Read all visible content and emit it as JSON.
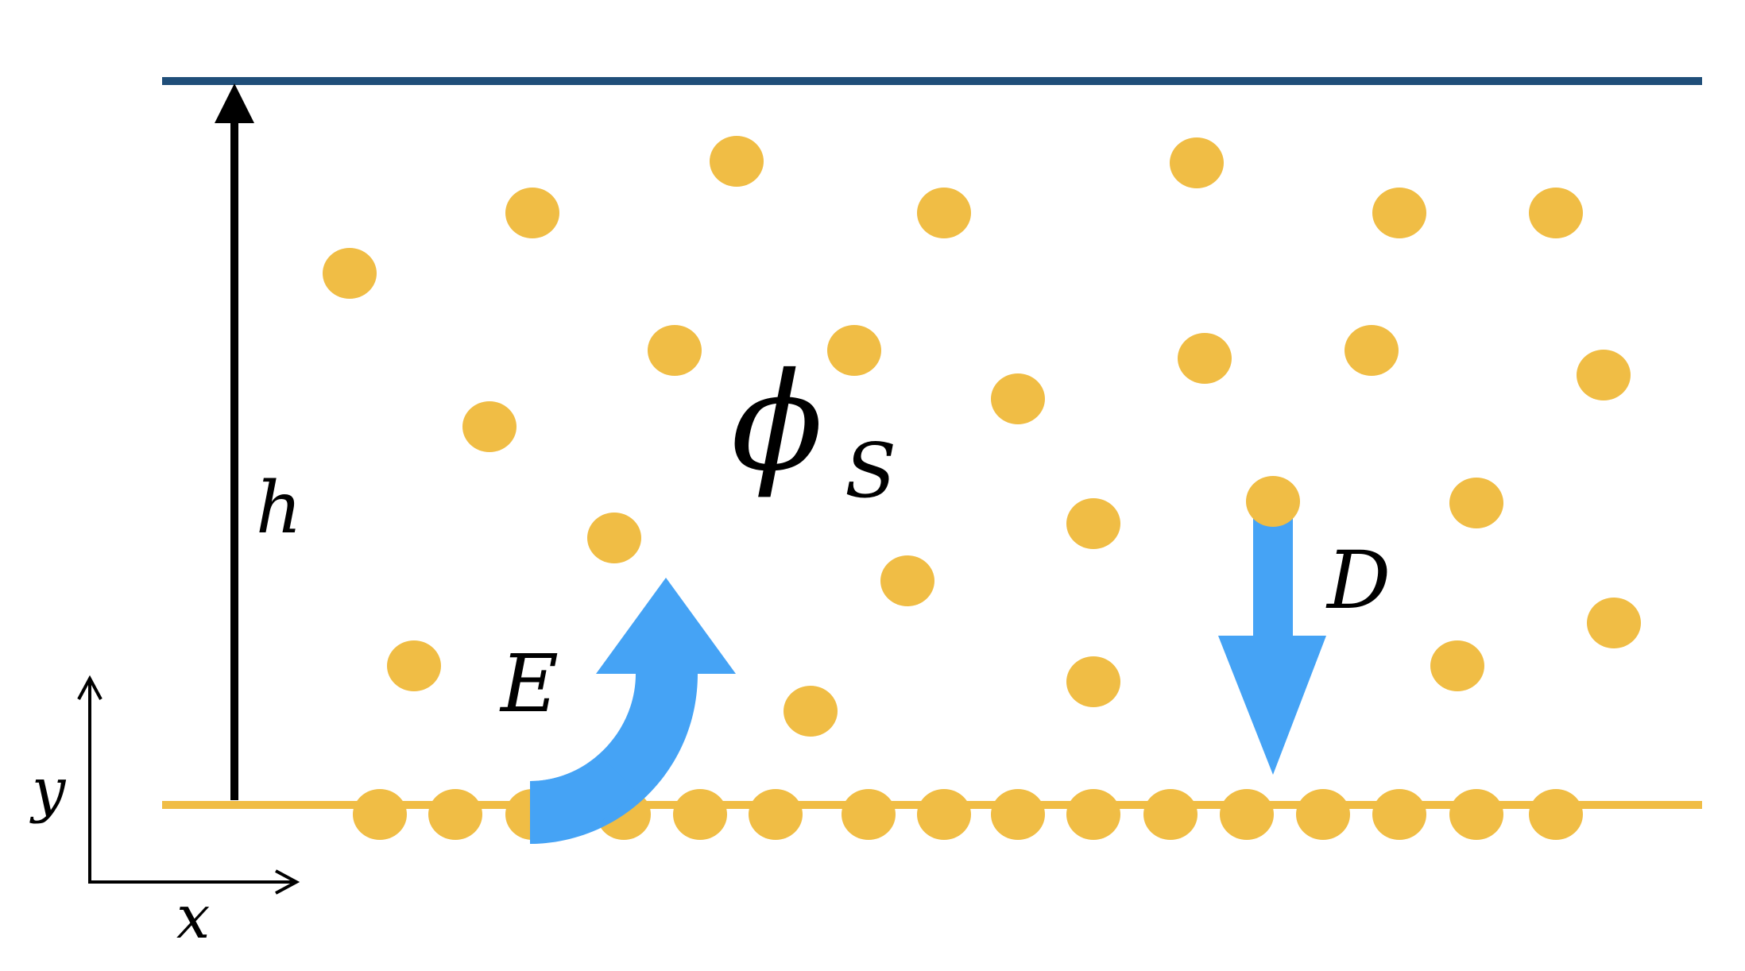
{
  "labels": {
    "h": "h",
    "phi": "ϕ",
    "phi_sub": "S",
    "E": "E",
    "D": "D",
    "x": "x",
    "y": "y"
  },
  "colors": {
    "top_wall": "#1f4e79",
    "bottom_wall": "#f0bd45",
    "particle": "#f0bd45",
    "arrow": "#45a3f5",
    "axis": "#000000",
    "background": "#ffffff"
  }
}
